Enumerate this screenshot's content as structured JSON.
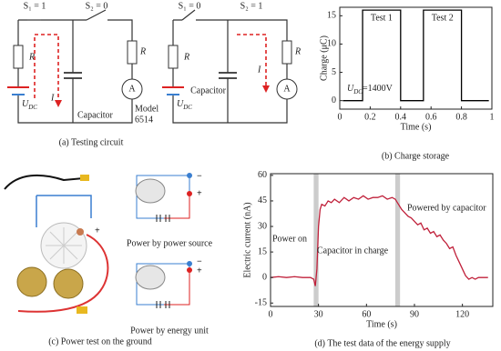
{
  "figure": {
    "circuits": [
      {
        "s1": "S₁ = 1",
        "s2": "S₂ = 0",
        "r": "R",
        "current": "I",
        "source": {
          "main": "U",
          "sub": "DC"
        },
        "capacitor": "Capacitor",
        "meter": "A",
        "model": [
          "Model",
          "6514"
        ]
      },
      {
        "s1": "S₁ = 0",
        "s2": "S₂ = 1",
        "r": "R",
        "current": "I",
        "source": {
          "main": "U",
          "sub": "DC"
        },
        "capacitor": "Capacitor",
        "meter": "A"
      }
    ],
    "photo": {
      "labels": [
        "Power by power source",
        "Power by energy unit"
      ],
      "plus": "+",
      "minus": "−"
    },
    "captions": [
      "(a)  Testing circuit",
      "(b)  Charge storage",
      "(c)  Power test on the ground",
      "(d)  The test data of the energy supply"
    ]
  },
  "chart_data": [
    {
      "type": "line",
      "ylabel": "Charge (μC)",
      "xlabel": "Time (s)",
      "color": "#000000",
      "x": [
        0.02,
        0.15,
        0.15,
        0.4,
        0.4,
        0.55,
        0.55,
        0.8,
        0.8,
        0.98
      ],
      "values": [
        0,
        0,
        16,
        16,
        0,
        0,
        16,
        16,
        0,
        0
      ],
      "xlim": [
        0,
        1
      ],
      "xticks": [
        0,
        0.2,
        0.4,
        0.6,
        0.8,
        1
      ],
      "ylim": [
        -1.5,
        16.5
      ],
      "yticks": [
        0,
        5,
        10,
        15
      ],
      "annotations": [
        "Test 1",
        "Test 2"
      ],
      "note": {
        "main": "U",
        "sub": "DC",
        "rest": "=1400V"
      }
    },
    {
      "type": "line",
      "ylabel": "Electric current (nA)",
      "xlabel": "Time (s)",
      "color": "#c0203a",
      "x": [
        0,
        5,
        10,
        15,
        20,
        25,
        27,
        28,
        29,
        30,
        31,
        32,
        34,
        36,
        38,
        40,
        43,
        46,
        49,
        52,
        55,
        58,
        61,
        64,
        67,
        70,
        73,
        76,
        78,
        80,
        82,
        84,
        86,
        88,
        90,
        92,
        94,
        96,
        98,
        100,
        102,
        104,
        106,
        108,
        110,
        112,
        114,
        116,
        118,
        120,
        122,
        124,
        126,
        128,
        130,
        133,
        136
      ],
      "values": [
        0,
        0.5,
        0,
        0.5,
        0,
        0,
        -1,
        -5,
        5,
        30,
        40,
        43,
        42,
        45,
        44,
        46,
        44,
        47,
        45,
        47,
        46,
        48,
        46,
        47,
        47,
        48,
        46,
        47,
        46,
        43,
        40,
        38,
        36,
        35,
        33,
        31,
        32,
        28,
        29,
        26,
        27,
        24,
        25,
        22,
        20,
        17,
        18,
        13,
        9,
        5,
        1,
        -1,
        0,
        -1,
        0,
        0,
        0
      ],
      "xlim": [
        0,
        139
      ],
      "xticks": [
        0,
        30,
        60,
        90,
        120
      ],
      "ylim": [
        -17,
        61
      ],
      "yticks": [
        -15,
        0,
        15,
        30,
        45,
        60
      ],
      "spans": [
        [
          27,
          30
        ],
        [
          78,
          81
        ]
      ],
      "span_color": "#cccccc",
      "annotations": [
        "Power on",
        "Capacitor in charge",
        "Powered by capacitor"
      ]
    }
  ]
}
